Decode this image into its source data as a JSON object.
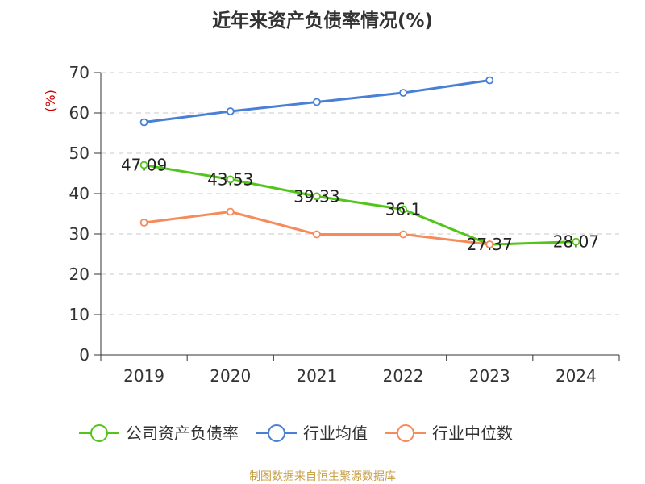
{
  "title": "近年来资产负债率情况(%)",
  "source": "制图数据来自恒生聚源数据库",
  "chart_data": {
    "type": "line",
    "title": "近年来资产负债率情况(%)",
    "ylabel": "(%)",
    "xlabel": "",
    "categories": [
      "2019",
      "2020",
      "2021",
      "2022",
      "2023",
      "2024"
    ],
    "ylim": [
      0,
      70
    ],
    "yticks": [
      0,
      10,
      20,
      30,
      40,
      50,
      60,
      70
    ],
    "grid": true,
    "legend_position": "bottom",
    "series": [
      {
        "name": "公司资产负债率",
        "color": "#52c41a",
        "values": [
          47.09,
          43.53,
          39.33,
          36.1,
          27.37,
          28.07
        ],
        "labels": [
          "47.09",
          "43.53",
          "39.33",
          "36.1",
          "27.37",
          "28.07"
        ]
      },
      {
        "name": "行业均值",
        "color": "#4a7fd6",
        "values": [
          57.7,
          60.4,
          62.7,
          65.0,
          68.1,
          null
        ]
      },
      {
        "name": "行业中位数",
        "color": "#f58a5b",
        "values": [
          32.8,
          35.5,
          29.9,
          29.9,
          27.4,
          null
        ]
      }
    ]
  }
}
